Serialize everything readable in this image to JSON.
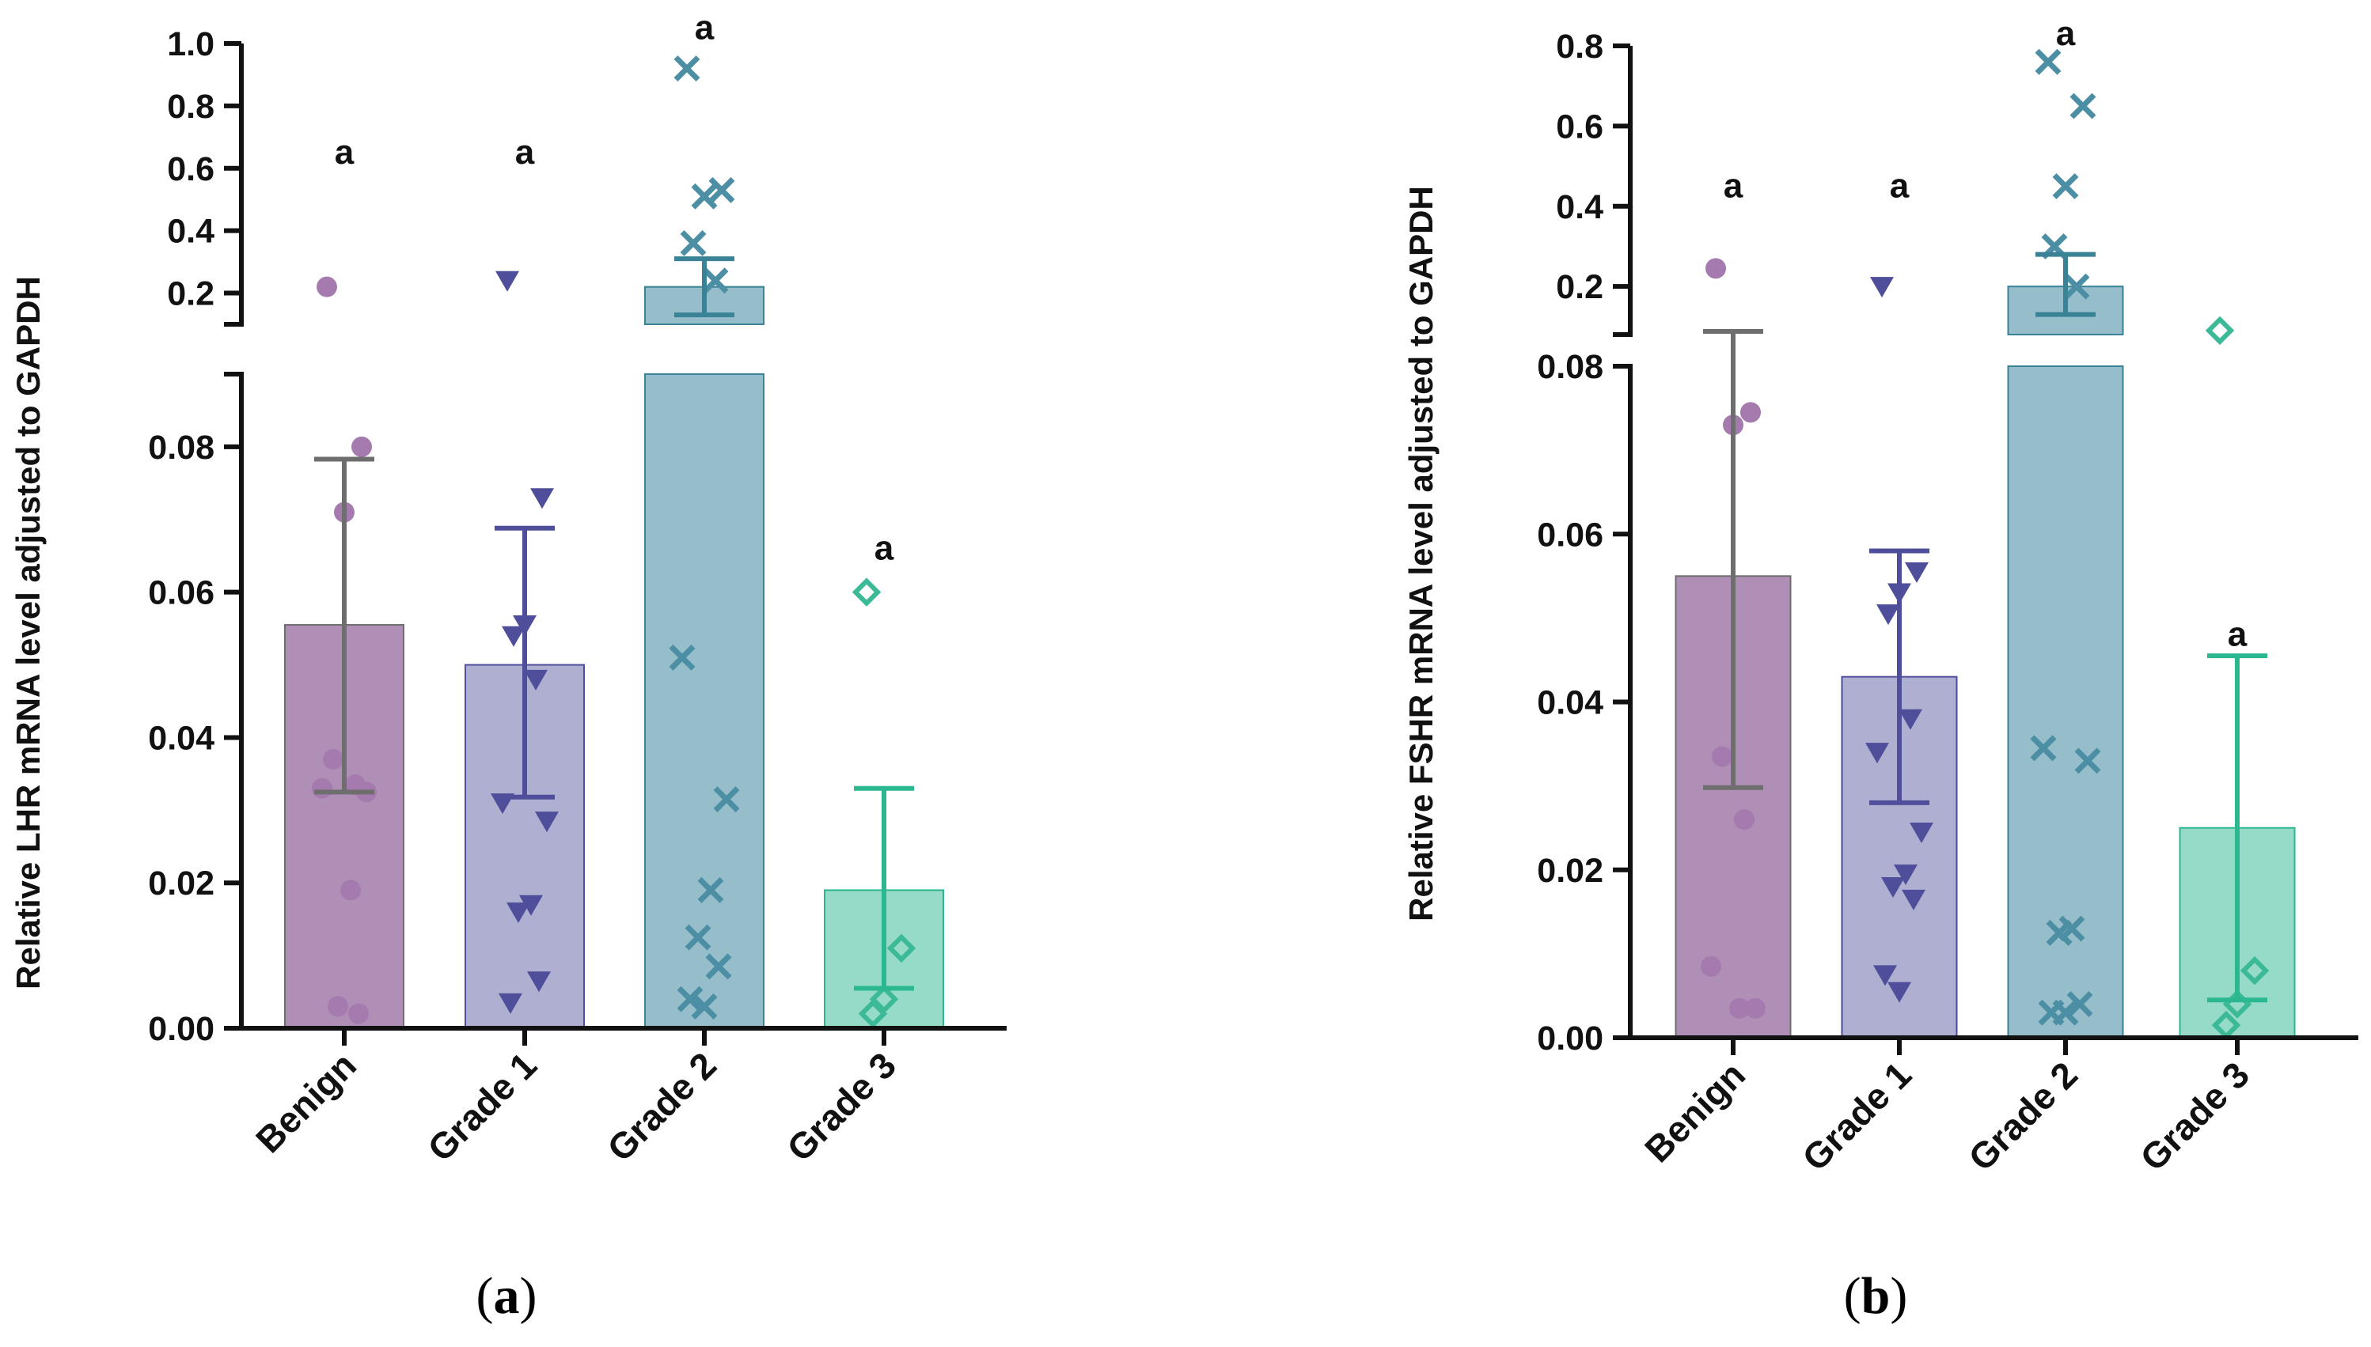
{
  "colors": {
    "Benign": "#9E76A6",
    "Grade 1": "#9C9DC7",
    "Grade 2": "#7FAFBE",
    "Grade 3": "#7ED3BC",
    "Benign_marker": "#A57AAE",
    "Grade 1_marker": "#4E4E9A",
    "Grade 2_marker": "#4C8FA5",
    "Grade 3_marker": "#3CBA97",
    "Benign_err": "#6E6E6E",
    "Grade 1_err": "#4E4E9A",
    "Grade 2_err": "#3A8296",
    "Grade 3_err": "#2BB890"
  },
  "chart_data": [
    {
      "type": "bar",
      "panel_label": "(a)",
      "panel_letter": "a",
      "ylabel": "Relative LHR mRNA level adjusted to GAPDH",
      "categories": [
        "Benign",
        "Grade 1",
        "Grade 2",
        "Grade 3"
      ],
      "broken_y_axis": true,
      "lower_segment": {
        "ylim": [
          0,
          0.09
        ],
        "ticks": [
          0.0,
          0.02,
          0.04,
          0.06,
          0.08
        ],
        "tick_labels": [
          "0.00",
          "0.02",
          "0.04",
          "0.06",
          "0.08"
        ]
      },
      "upper_segment": {
        "ylim": [
          0.1,
          1.0
        ],
        "ticks": [
          0.2,
          0.4,
          0.6,
          0.8,
          1.0
        ],
        "tick_labels": [
          "0.2",
          "0.4",
          "0.6",
          "0.8",
          "1.0"
        ]
      },
      "bars": [
        {
          "category": "Benign",
          "value": 0.0555,
          "error_low": 0.0325,
          "error_high": 0.0783,
          "marker": "circle",
          "points": [
            0.22,
            0.08,
            0.071,
            0.037,
            0.0335,
            0.033,
            0.0325,
            0.019,
            0.003,
            0.002
          ]
        },
        {
          "category": "Grade 1",
          "value": 0.05,
          "error_low": 0.0318,
          "error_high": 0.0688,
          "marker": "triangle",
          "points": [
            0.24,
            0.073,
            0.0555,
            0.054,
            0.048,
            0.031,
            0.0285,
            0.017,
            0.016,
            0.0065,
            0.0035
          ]
        },
        {
          "category": "Grade 2",
          "value": 0.22,
          "error_low": 0.13,
          "error_high": 0.31,
          "marker": "cross",
          "points": [
            0.92,
            0.53,
            0.51,
            0.36,
            0.24,
            0.051,
            0.0315,
            0.019,
            0.0125,
            0.0085,
            0.004,
            0.003
          ]
        },
        {
          "category": "Grade 3",
          "value": 0.019,
          "error_low": 0.0055,
          "error_high": 0.033,
          "marker": "diamond",
          "points": [
            0.06,
            0.011,
            0.004,
            0.002
          ]
        }
      ],
      "annotations": [
        {
          "category": "Benign",
          "text": "a",
          "y": 0.65
        },
        {
          "category": "Grade 1",
          "text": "a",
          "y": 0.65
        },
        {
          "category": "Grade 2",
          "text": "a",
          "y": 1.05
        },
        {
          "category": "Grade 3",
          "text": "a",
          "y": 0.066
        }
      ]
    },
    {
      "type": "bar",
      "panel_label": "(b)",
      "panel_letter": "b",
      "ylabel": "Relative FSHR mRNA level adjusted to GAPDH",
      "categories": [
        "Benign",
        "Grade 1",
        "Grade 2",
        "Grade 3"
      ],
      "broken_y_axis": true,
      "lower_segment": {
        "ylim": [
          0,
          0.08
        ],
        "ticks": [
          0.0,
          0.02,
          0.04,
          0.06,
          0.08
        ],
        "tick_labels": [
          "0.00",
          "0.02",
          "0.04",
          "0.06",
          "0.08"
        ]
      },
      "upper_segment": {
        "ylim": [
          0.08,
          0.8
        ],
        "ticks": [
          0.2,
          0.4,
          0.6,
          0.8
        ],
        "tick_labels": [
          "0.2",
          "0.4",
          "0.6",
          "0.8"
        ]
      },
      "bars": [
        {
          "category": "Benign",
          "value": 0.055,
          "error_low": 0.0298,
          "error_high": 0.088,
          "marker": "circle",
          "points": [
            0.245,
            0.0745,
            0.073,
            0.0335,
            0.026,
            0.0085,
            0.0035,
            0.0035
          ]
        },
        {
          "category": "Grade 1",
          "value": 0.043,
          "error_low": 0.028,
          "error_high": 0.058,
          "marker": "triangle",
          "points": [
            0.2,
            0.0555,
            0.053,
            0.0505,
            0.038,
            0.034,
            0.0245,
            0.0195,
            0.018,
            0.0165,
            0.0075,
            0.0055
          ]
        },
        {
          "category": "Grade 2",
          "value": 0.2,
          "error_low": 0.13,
          "error_high": 0.28,
          "marker": "cross",
          "points": [
            0.76,
            0.65,
            0.45,
            0.3,
            0.2,
            0.0345,
            0.033,
            0.013,
            0.0125,
            0.004,
            0.003,
            0.003
          ]
        },
        {
          "category": "Grade 3",
          "value": 0.025,
          "error_low": 0.0045,
          "error_high": 0.0455,
          "marker": "diamond",
          "points": [
            0.09,
            0.008,
            0.004,
            0.0015
          ]
        }
      ],
      "annotations": [
        {
          "category": "Benign",
          "text": "a",
          "y": 0.45
        },
        {
          "category": "Grade 1",
          "text": "a",
          "y": 0.45
        },
        {
          "category": "Grade 2",
          "text": "a",
          "y": 0.83
        },
        {
          "category": "Grade 3",
          "text": "a",
          "y": 0.048
        }
      ]
    }
  ]
}
